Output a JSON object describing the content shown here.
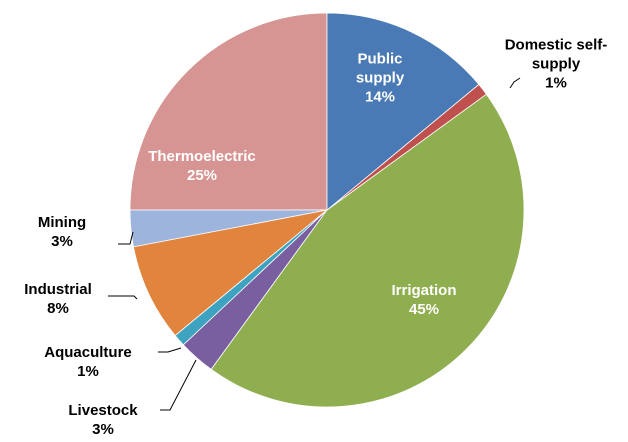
{
  "chart_data": {
    "type": "pie",
    "categories": [
      "Public supply",
      "Domestic self-supply",
      "Irrigation",
      "Livestock",
      "Aquaculture",
      "Industrial",
      "Mining",
      "Thermoelectric"
    ],
    "values": [
      14,
      1,
      45,
      3,
      1,
      8,
      3,
      25
    ],
    "value_labels": [
      "14%",
      "1%",
      "45%",
      "3%",
      "1%",
      "8%",
      "3%",
      "25%"
    ],
    "colors": [
      "#4a7ab5",
      "#c0504d",
      "#8fae4f",
      "#7a5fa0",
      "#3ea3c0",
      "#e0843e",
      "#9db4dd",
      "#d69593"
    ]
  }
}
